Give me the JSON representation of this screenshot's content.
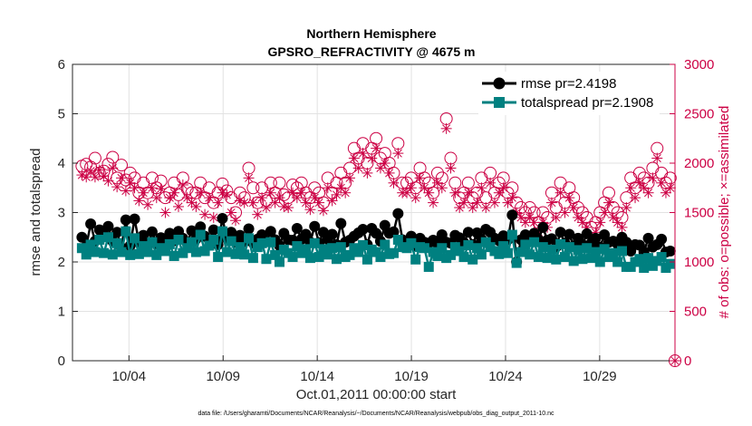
{
  "chart_data": {
    "type": "line",
    "title_line1": "Northern Hemisphere",
    "title_line2": "GPSRO_REFRACTIVITY @ 4675 m",
    "xlabel": "Oct.01,2011 00:00:00 start",
    "ylabel_left": "rmse and totalspread",
    "ylabel_right": "# of obs: o=possible; ×=assimilated",
    "footer": "data file: /Users/gharamti/Documents/NCAR/Reanalysis/~/Documents/NCAR/Reanalysis/webpub/obs_diag_output_2011-10.nc",
    "xlim": [
      1,
      33
    ],
    "ylim_left": [
      0,
      6
    ],
    "ylim_right": [
      0,
      3000
    ],
    "x_ticks": [
      4,
      9,
      14,
      19,
      24,
      29
    ],
    "x_tick_labels": [
      "10/04",
      "10/09",
      "10/14",
      "10/19",
      "10/24",
      "10/29"
    ],
    "y_left_ticks": [
      "0",
      "1",
      "2",
      "3",
      "4",
      "5",
      "6"
    ],
    "y_right_ticks": [
      "0",
      "500",
      "1000",
      "1500",
      "2000",
      "2500",
      "3000"
    ],
    "grid": true,
    "legend_position": "top-right",
    "series": [
      {
        "name": "rmse pr=2.4198",
        "axis": "left",
        "color": "#000000",
        "marker": "circle",
        "values": [
          2.5,
          2.32,
          2.77,
          2.42,
          2.65,
          2.55,
          2.72,
          2.42,
          2.6,
          2.29,
          2.85,
          2.33,
          2.87,
          2.4,
          2.54,
          2.35,
          2.61,
          2.37,
          2.49,
          2.44,
          2.58,
          2.43,
          2.62,
          2.48,
          2.38,
          2.63,
          2.46,
          2.71,
          2.52,
          2.44,
          2.65,
          2.35,
          2.88,
          2.48,
          2.6,
          2.4,
          2.54,
          2.41,
          2.67,
          2.38,
          2.46,
          2.55,
          2.42,
          2.62,
          2.45,
          2.33,
          2.58,
          2.45,
          2.44,
          2.68,
          2.46,
          2.56,
          2.4,
          2.72,
          2.39,
          2.6,
          2.46,
          2.56,
          2.35,
          2.78,
          2.4,
          2.44,
          2.52,
          2.59,
          2.66,
          2.35,
          2.68,
          2.58,
          2.42,
          2.74,
          2.58,
          2.61,
          2.98,
          2.45,
          2.4,
          2.52,
          2.32,
          2.48,
          2.4,
          2.38,
          2.44,
          2.37,
          2.55,
          2.4,
          2.38,
          2.54,
          2.49,
          2.39,
          2.6,
          2.35,
          2.59,
          2.46,
          2.66,
          2.6,
          2.48,
          2.43,
          2.53,
          2.45,
          2.95,
          2.0,
          2.45,
          2.55,
          2.5,
          2.58,
          2.45,
          2.7,
          2.44,
          2.47,
          2.3,
          2.6,
          2.38,
          2.56,
          2.32,
          2.48,
          2.35,
          2.57,
          2.38,
          2.48,
          2.3,
          2.55,
          2.4,
          2.42,
          2.36,
          2.5,
          2.4,
          2.22,
          2.35,
          2.34,
          2.2,
          2.48,
          2.3,
          2.35,
          2.46,
          2.2,
          2.22
        ]
      },
      {
        "name": "totalspread pr=2.1908",
        "axis": "left",
        "color": "#008080",
        "marker": "square",
        "values": [
          2.28,
          2.15,
          2.35,
          2.2,
          2.45,
          2.18,
          2.5,
          2.15,
          2.38,
          2.2,
          2.62,
          2.14,
          2.48,
          2.16,
          2.32,
          2.2,
          2.4,
          2.14,
          2.28,
          2.22,
          2.36,
          2.12,
          2.45,
          2.18,
          2.28,
          2.4,
          2.2,
          2.55,
          2.22,
          2.33,
          2.45,
          2.1,
          2.62,
          2.2,
          2.42,
          2.16,
          2.3,
          2.15,
          2.48,
          2.08,
          2.3,
          2.38,
          2.06,
          2.4,
          2.14,
          2.0,
          2.25,
          2.18,
          2.1,
          2.32,
          2.18,
          2.26,
          2.08,
          2.38,
          2.1,
          2.26,
          2.15,
          2.28,
          2.06,
          2.3,
          2.1,
          2.14,
          2.28,
          2.2,
          2.34,
          2.05,
          2.25,
          2.2,
          2.1,
          2.35,
          2.16,
          2.18,
          2.45,
          2.3,
          2.28,
          2.38,
          2.05,
          2.3,
          2.28,
          1.9,
          2.2,
          2.12,
          2.28,
          2.08,
          2.14,
          2.3,
          2.22,
          2.1,
          2.34,
          2.05,
          2.28,
          2.15,
          2.4,
          2.3,
          2.22,
          2.16,
          2.32,
          2.18,
          2.55,
          1.98,
          2.2,
          2.35,
          2.15,
          2.4,
          2.1,
          2.3,
          2.08,
          2.25,
          2.05,
          2.36,
          2.1,
          2.3,
          2.02,
          2.24,
          2.06,
          2.28,
          2.08,
          2.2,
          2.0,
          2.26,
          2.1,
          2.18,
          2.0,
          2.22,
          1.9,
          1.9,
          2.0,
          2.06,
          1.88,
          2.08,
          1.92,
          2.02,
          2.1,
          1.88,
          1.96
        ]
      },
      {
        "name": "possible",
        "axis": "right",
        "color": "#cc0044",
        "marker": "open-circle",
        "values": [
          1970,
          1990,
          1960,
          2050,
          1900,
          1920,
          1990,
          2060,
          1850,
          1980,
          1830,
          1900,
          1850,
          1700,
          1800,
          1700,
          1850,
          1750,
          1820,
          1650,
          1700,
          1800,
          1680,
          1850,
          1740,
          1700,
          1700,
          1800,
          1650,
          1750,
          1600,
          1700,
          1790,
          1720,
          1650,
          1500,
          1700,
          1650,
          1950,
          1750,
          1600,
          1750,
          1620,
          1800,
          1700,
          1800,
          1680,
          1650,
          1780,
          1750,
          1800,
          1700,
          1650,
          1750,
          1700,
          1600,
          1850,
          1700,
          1800,
          1900,
          1800,
          1950,
          2150,
          2050,
          2200,
          2000,
          2150,
          2250,
          2050,
          2100,
          2000,
          1900,
          2200,
          1800,
          1800,
          1850,
          1750,
          1950,
          1850,
          1800,
          1700,
          1900,
          1850,
          2450,
          2050,
          1800,
          1650,
          1700,
          1800,
          1650,
          1700,
          1850,
          1650,
          1900,
          1700,
          1800,
          1850,
          1700,
          1750,
          1600,
          1550,
          1500,
          1550,
          1500,
          1400,
          1500,
          1450,
          1700,
          1550,
          1800,
          1600,
          1750,
          1650,
          1550,
          1500,
          1450,
          1350,
          1400,
          1500,
          1600,
          1700,
          1550,
          1500,
          1450,
          1650,
          1850,
          1750,
          1900,
          1850,
          1800,
          1950,
          2150,
          1900,
          1800,
          1850
        ]
      },
      {
        "name": "assimilated",
        "axis": "right",
        "color": "#cc0044",
        "marker": "asterisk",
        "values": [
          1880,
          1860,
          1920,
          1860,
          1930,
          1870,
          1820,
          1950,
          1760,
          1850,
          1720,
          1800,
          1750,
          1620,
          1700,
          1580,
          1750,
          1650,
          1740,
          1500,
          1650,
          1700,
          1560,
          1780,
          1650,
          1600,
          1560,
          1700,
          1480,
          1650,
          1450,
          1600,
          1700,
          1680,
          1500,
          1420,
          1620,
          1600,
          1850,
          1600,
          1480,
          1650,
          1550,
          1700,
          1600,
          1650,
          1560,
          1550,
          1700,
          1650,
          1700,
          1600,
          1530,
          1650,
          1600,
          1520,
          1750,
          1620,
          1680,
          1750,
          1700,
          1850,
          2050,
          1950,
          2100,
          1900,
          2050,
          2150,
          1950,
          2000,
          1900,
          1800,
          2100,
          1700,
          1700,
          1750,
          1650,
          1850,
          1750,
          1700,
          1600,
          1800,
          1750,
          2350,
          1950,
          1700,
          1550,
          1600,
          1700,
          1550,
          1600,
          1750,
          1550,
          1800,
          1600,
          1700,
          1750,
          1600,
          1650,
          1500,
          1450,
          1400,
          1450,
          1400,
          1300,
          1400,
          1350,
          1600,
          1450,
          1700,
          1500,
          1650,
          1550,
          1450,
          1400,
          1350,
          1250,
          1300,
          1400,
          1500,
          1600,
          1450,
          1400,
          1350,
          1550,
          1750,
          1650,
          1800,
          1750,
          1700,
          1850,
          2050,
          1800,
          1700,
          1750
        ]
      }
    ]
  }
}
